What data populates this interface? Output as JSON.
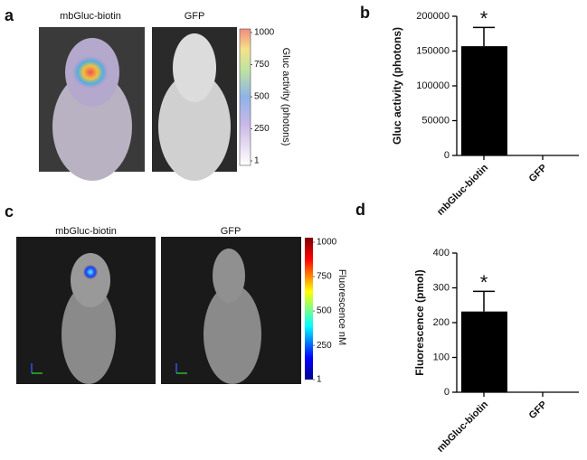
{
  "image_panels": [
    {
      "panel_label": "a",
      "images": [
        "mbGluc-biotin",
        "GFP"
      ],
      "colorbar": {
        "label": "Gluc activity (photons)",
        "lim": [
          1,
          1000
        ],
        "ticks": [
          1,
          250,
          500,
          750,
          1000
        ]
      }
    },
    {
      "panel_label": "c",
      "images": [
        "mbGluc-biotin",
        "GFP"
      ],
      "colorbar": {
        "label": "Fluorescence nM",
        "lim": [
          1,
          1000
        ],
        "ticks": [
          1,
          250,
          500,
          750,
          1000
        ]
      }
    }
  ],
  "chart_data": [
    {
      "type": "bar",
      "panel_label": "b",
      "ylabel": "Gluc activity (photons)",
      "annotation": "*",
      "categories": [
        "mbGluc-biotin",
        "GFP"
      ],
      "values": [
        157000,
        0
      ],
      "errors": [
        27000,
        null
      ],
      "color": "#000000",
      "ylim": [
        0,
        200000
      ],
      "yticks": [
        0,
        50000,
        100000,
        150000,
        200000
      ]
    },
    {
      "type": "bar",
      "panel_label": "d",
      "ylabel": "Fluorescence (pmol)",
      "annotation": "*",
      "categories": [
        "mbGluc-biotin",
        "GFP"
      ],
      "values": [
        232,
        0
      ],
      "errors": [
        58,
        null
      ],
      "color": "#000000",
      "ylim": [
        0,
        400
      ],
      "yticks": [
        0,
        100,
        200,
        300,
        400
      ]
    }
  ]
}
